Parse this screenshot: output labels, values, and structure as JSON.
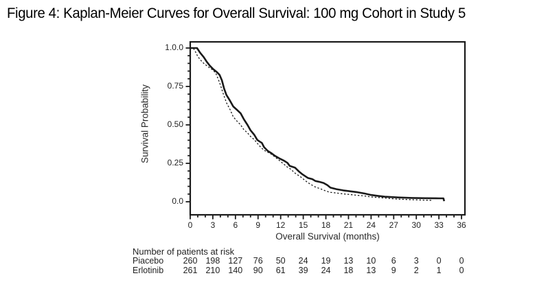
{
  "title": "Figure 4: Kaplan-Meier Curves for Overall Survival: 100 mg Cohort in Study 5",
  "chart_data": {
    "type": "line",
    "subtype": "kaplan-meier-step-curves",
    "title": "Figure 4: Kaplan-Meier Curves for Overall Survival: 100 mg Cohort in Study 5",
    "xlabel": "Overall Survival (months)",
    "ylabel": "Survival Probability",
    "xlim": [
      0,
      36.45
    ],
    "ylim": [
      -0.085,
      1.04
    ],
    "grid": false,
    "legend": "none",
    "frame": "full-box",
    "ink_color": "#1a1a1a",
    "x_ticks": [
      0,
      3,
      6,
      9,
      12,
      15,
      18,
      21,
      24,
      27,
      30,
      33,
      36
    ],
    "x_tick_labels": [
      "0",
      "3",
      "6",
      "9",
      "12",
      "15",
      "18",
      "21",
      "24",
      "27",
      "30",
      "33",
      "36"
    ],
    "x_minor_tick_interval": 1,
    "y_ticks": [
      {
        "value": 0.0,
        "label": "0.0"
      },
      {
        "value": 0.25,
        "label": "0.25"
      },
      {
        "value": 0.5,
        "label": "0.50"
      },
      {
        "value": 0.75,
        "label": "0.75"
      },
      {
        "value": 1.0,
        "label": "1.0.0"
      }
    ],
    "y_minor_tick_interval": 0.05,
    "series": [
      {
        "name": "Erlotinib",
        "line_style": "solid",
        "line_width": 2.6,
        "color": "#1a1a1a",
        "points": [
          [
            0,
            1.0
          ],
          [
            0.9,
            1.0
          ],
          [
            1.3,
            0.97
          ],
          [
            1.8,
            0.94
          ],
          [
            2.2,
            0.91
          ],
          [
            2.6,
            0.885
          ],
          [
            3.0,
            0.865
          ],
          [
            3.5,
            0.845
          ],
          [
            3.9,
            0.825
          ],
          [
            4.2,
            0.79
          ],
          [
            4.5,
            0.735
          ],
          [
            4.8,
            0.695
          ],
          [
            5.3,
            0.655
          ],
          [
            5.7,
            0.62
          ],
          [
            6.2,
            0.598
          ],
          [
            6.7,
            0.575
          ],
          [
            7.1,
            0.538
          ],
          [
            7.6,
            0.5
          ],
          [
            8.0,
            0.465
          ],
          [
            8.5,
            0.435
          ],
          [
            8.9,
            0.402
          ],
          [
            9.2,
            0.392
          ],
          [
            9.5,
            0.383
          ],
          [
            9.8,
            0.355
          ],
          [
            10.3,
            0.33
          ],
          [
            10.8,
            0.315
          ],
          [
            11.2,
            0.3
          ],
          [
            11.9,
            0.28
          ],
          [
            12.4,
            0.268
          ],
          [
            12.9,
            0.253
          ],
          [
            13.2,
            0.233
          ],
          [
            13.9,
            0.222
          ],
          [
            14.4,
            0.198
          ],
          [
            14.9,
            0.178
          ],
          [
            15.6,
            0.155
          ],
          [
            16.2,
            0.147
          ],
          [
            16.6,
            0.135
          ],
          [
            17.2,
            0.129
          ],
          [
            17.7,
            0.122
          ],
          [
            18.2,
            0.108
          ],
          [
            18.6,
            0.092
          ],
          [
            19.4,
            0.082
          ],
          [
            20.3,
            0.074
          ],
          [
            21.2,
            0.068
          ],
          [
            22.2,
            0.062
          ],
          [
            23.1,
            0.054
          ],
          [
            24.0,
            0.044
          ],
          [
            24.9,
            0.038
          ],
          [
            25.8,
            0.033
          ],
          [
            27.6,
            0.028
          ],
          [
            29.4,
            0.025
          ],
          [
            31.3,
            0.023
          ],
          [
            33.0,
            0.022
          ],
          [
            33.6,
            0.022
          ],
          [
            33.7,
            0.004
          ]
        ]
      },
      {
        "name": "Piacebo",
        "line_style": "dotted",
        "line_width": 1.3,
        "color": "#1a1a1a",
        "points": [
          [
            0,
            1.0
          ],
          [
            0.4,
            1.0
          ],
          [
            0.7,
            0.975
          ],
          [
            1.0,
            0.945
          ],
          [
            1.4,
            0.92
          ],
          [
            1.8,
            0.9
          ],
          [
            2.2,
            0.885
          ],
          [
            2.6,
            0.87
          ],
          [
            3.0,
            0.858
          ],
          [
            3.4,
            0.835
          ],
          [
            3.7,
            0.8
          ],
          [
            4.0,
            0.76
          ],
          [
            4.4,
            0.7
          ],
          [
            4.8,
            0.645
          ],
          [
            5.3,
            0.598
          ],
          [
            5.7,
            0.553
          ],
          [
            6.2,
            0.525
          ],
          [
            6.7,
            0.5
          ],
          [
            7.1,
            0.47
          ],
          [
            7.6,
            0.448
          ],
          [
            8.0,
            0.425
          ],
          [
            8.5,
            0.404
          ],
          [
            8.9,
            0.38
          ],
          [
            9.4,
            0.352
          ],
          [
            9.8,
            0.335
          ],
          [
            10.3,
            0.322
          ],
          [
            10.8,
            0.308
          ],
          [
            11.2,
            0.293
          ],
          [
            11.9,
            0.266
          ],
          [
            12.4,
            0.245
          ],
          [
            12.9,
            0.225
          ],
          [
            13.4,
            0.21
          ],
          [
            13.8,
            0.19
          ],
          [
            14.7,
            0.16
          ],
          [
            15.2,
            0.14
          ],
          [
            15.6,
            0.125
          ],
          [
            16.1,
            0.11
          ],
          [
            16.5,
            0.098
          ],
          [
            17.4,
            0.082
          ],
          [
            18.0,
            0.07
          ],
          [
            18.5,
            0.062
          ],
          [
            19.4,
            0.057
          ],
          [
            20.3,
            0.051
          ],
          [
            21.2,
            0.047
          ],
          [
            22.2,
            0.042
          ],
          [
            23.1,
            0.038
          ],
          [
            24.0,
            0.031
          ],
          [
            24.9,
            0.028
          ],
          [
            25.8,
            0.024
          ],
          [
            27.6,
            0.017
          ],
          [
            29.4,
            0.013
          ],
          [
            31.3,
            0.01
          ],
          [
            32.2,
            0.009
          ]
        ]
      }
    ],
    "risk_table": {
      "title": "Number of patients at risk",
      "months": [
        0,
        3,
        6,
        9,
        12,
        15,
        18,
        21,
        24,
        27,
        30,
        33,
        36
      ],
      "rows": [
        {
          "label": "Piacebo",
          "counts": [
            "260",
            "198",
            "127",
            "76",
            "50",
            "24",
            "19",
            "13",
            "10",
            "6",
            "3",
            "0",
            "0"
          ]
        },
        {
          "label": "Erlotinib",
          "counts": [
            "261",
            "210",
            "140",
            "90",
            "61",
            "39",
            "24",
            "18",
            "13",
            "9",
            "2",
            "1",
            "0"
          ]
        }
      ]
    }
  }
}
